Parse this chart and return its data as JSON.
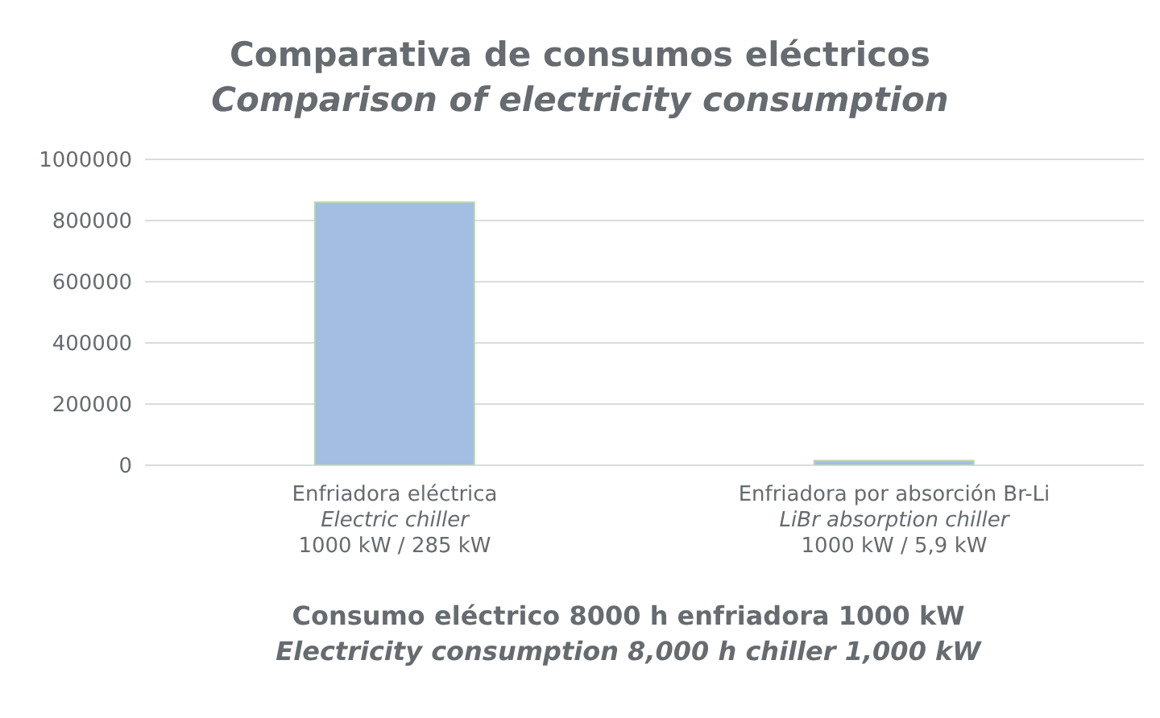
{
  "chart_data": {
    "type": "bar",
    "title": "Comparativa de consumos eléctricos",
    "subtitle": "Comparison of electricity consumption",
    "categories": [
      "Enfriadora eléctrica\nElectric chiller\n1000 kW / 285 kW",
      "Enfriadora por absorción Br-Li\nLiBr absorption chiller\n1000 kW / 5,9 kW"
    ],
    "values": [
      860000,
      15000
    ],
    "color": "#a4bde2",
    "ylim": [
      0,
      1000000
    ],
    "yticks": [
      0,
      200000,
      400000,
      600000,
      800000,
      1000000
    ],
    "grid": "y",
    "xlabel": "Consumo eléctrico 8000 h enfriadora 1000 kW\nElectricity consumption 8,000 h chiller 1,000 kW",
    "legend": false
  }
}
